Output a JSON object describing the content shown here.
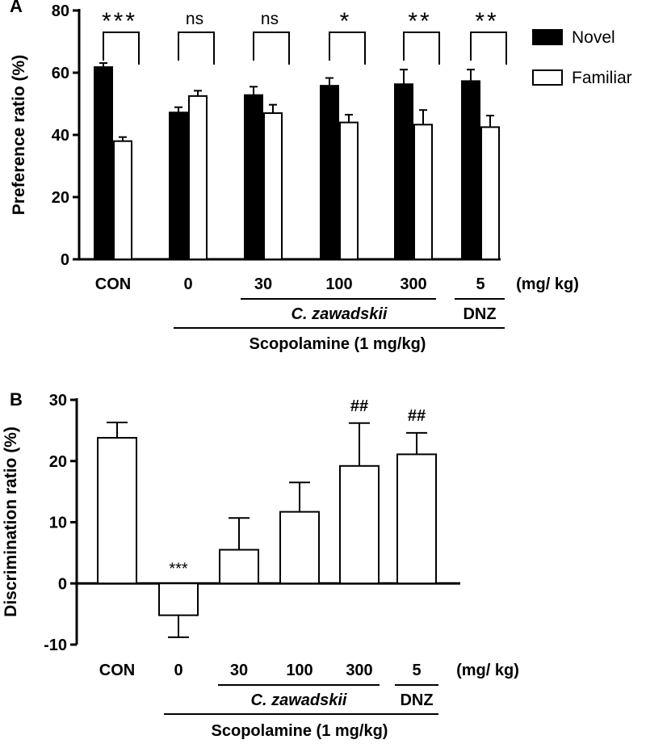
{
  "chart_data": [
    {
      "panel": "A",
      "type": "bar",
      "ylabel": "Preference ratio (%)",
      "ylim": [
        0,
        80
      ],
      "yticks": [
        0,
        20,
        40,
        60,
        80
      ],
      "categories": [
        "CON",
        "0",
        "30",
        "100",
        "300",
        "5"
      ],
      "unit_label": "(mg/ kg)",
      "series": [
        {
          "name": "Novel",
          "fill": "#000000",
          "values": [
            61.8,
            47.2,
            52.8,
            55.8,
            56.3,
            57.3
          ],
          "errors": [
            1.3,
            1.7,
            2.7,
            2.5,
            4.7,
            3.7
          ]
        },
        {
          "name": "Familiar",
          "fill": "#ffffff",
          "values": [
            38.0,
            52.5,
            47.0,
            44.0,
            43.3,
            42.5
          ],
          "errors": [
            1.3,
            1.7,
            2.7,
            2.5,
            4.7,
            3.7
          ]
        }
      ],
      "significance": [
        "***",
        "ns",
        "ns",
        "*",
        "**",
        "**"
      ],
      "legend_position": "top-right",
      "groups": {
        "extract": "C. zawadskii",
        "drug": "DNZ",
        "treatment": "Scopolamine (1 mg/kg)"
      }
    },
    {
      "panel": "B",
      "type": "bar",
      "ylabel": "Discrimination ratio (%)",
      "ylim": [
        -10,
        30
      ],
      "yticks": [
        -10,
        0,
        10,
        20,
        30
      ],
      "categories": [
        "CON",
        "0",
        "30",
        "100",
        "300",
        "5"
      ],
      "unit_label": "(mg/ kg)",
      "values": [
        23.8,
        -5.2,
        5.5,
        11.7,
        19.2,
        21.1
      ],
      "errors": [
        2.5,
        3.6,
        5.2,
        4.8,
        7.0,
        3.5
      ],
      "annotations": [
        "",
        "***",
        "",
        "",
        "##",
        "##"
      ],
      "groups": {
        "extract": "C. zawadskii",
        "drug": "DNZ",
        "treatment": "Scopolamine (1 mg/kg)"
      }
    }
  ]
}
